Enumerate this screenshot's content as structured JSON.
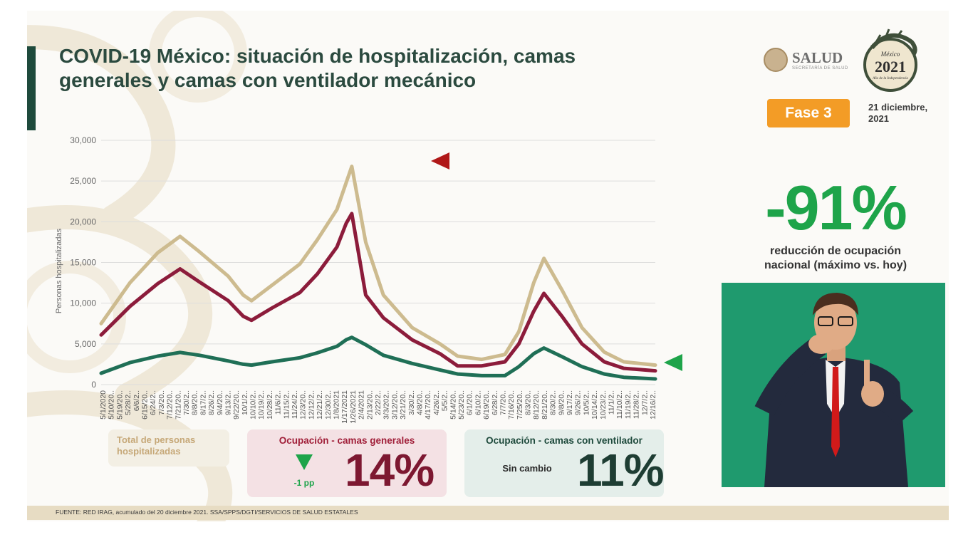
{
  "title": "COVID-19 México: situación de hospitalización, camas generales y camas con ventilador mecánico",
  "logos": {
    "salud": "SALUD",
    "salud_sub": "SECRETARÍA DE SALUD",
    "year_logo_year": "2021",
    "year_logo_top": "México",
    "year_logo_sub": "Año de la Independencia"
  },
  "phase_badge": "Fase 3",
  "date": "21 diciembre, 2021",
  "reduction": {
    "value": "-91%",
    "caption": "reducción de ocupación nacional (máximo vs. hoy)"
  },
  "kpis": {
    "total": {
      "label": "Total de personas hospitalizadas"
    },
    "general": {
      "title": "Ocupación - camas generales",
      "value": "14%",
      "change": "-1 pp"
    },
    "ventilator": {
      "title": "Ocupación - camas con ventilador",
      "value": "11%",
      "change": "Sin cambio"
    }
  },
  "footer": "FUENTE: RED IRAG, acumulado del 20 diciembre 2021.   SSA/SPPS/DGTI/SERVICIOS DE SALUD ESTATALES",
  "colors": {
    "total": "#cdbb8f",
    "general": "#8c1c3b",
    "ventilator": "#1f6f56",
    "badge": "#f39c26",
    "accent_green": "#1ea44a",
    "marker_red": "#b01818"
  },
  "chart_data": {
    "type": "line",
    "ylabel": "Personas hospitalizadas",
    "xlabel": "",
    "ylim": [
      0,
      30000
    ],
    "yticks": [
      "0",
      "5,000",
      "10,000",
      "15,000",
      "20,000",
      "25,000",
      "30,000"
    ],
    "grid": true,
    "x_tick_labels": [
      "5/1/2020",
      "5/10/20..",
      "5/19/20..",
      "5/28/2..",
      "6/6/2..",
      "6/15/20..",
      "6/24/2..",
      "7/3/20..",
      "7/12/20..",
      "7/21/20..",
      "7/30/2..",
      "8/8/20..",
      "8/17/2..",
      "8/26/2..",
      "9/4/20..",
      "9/13/2..",
      "9/22/20..",
      "10/1/2..",
      "10/10/2..",
      "10/19/2..",
      "10/28/2..",
      "11/6/2..",
      "11/15/2..",
      "11/24/2..",
      "12/3/20..",
      "12/12/2..",
      "12/21/2..",
      "12/30/2..",
      "1/8/2021",
      "1/17/2021",
      "1/26/2021",
      "2/4/2021",
      "2/13/20..",
      "2/22/2..",
      "3/3/202..",
      "3/12/20..",
      "3/21/20..",
      "3/30/2..",
      "4/8/20..",
      "4/17/20..",
      "4/26/2..",
      "5/5/2..",
      "5/14/20..",
      "5/23/20..",
      "6/1/20..",
      "6/10/2..",
      "6/19/20..",
      "6/28/2..",
      "7/7/20..",
      "7/16/20..",
      "7/25/20..",
      "8/3/20..",
      "8/12/20..",
      "8/21/20..",
      "8/30/2..",
      "9/8/20..",
      "9/17/2..",
      "9/26/2..",
      "10/5/2..",
      "10/14/2..",
      "10/23/2..",
      "11/1/2..",
      "11/10/2..",
      "11/19/2..",
      "11/28/2..",
      "12/7/2..",
      "12/16/2.."
    ],
    "x": [
      "2020-05-01",
      "2020-06-01",
      "2020-07-01",
      "2020-07-25",
      "2020-08-15",
      "2020-09-15",
      "2020-10-01",
      "2020-10-10",
      "2020-11-01",
      "2020-12-01",
      "2020-12-20",
      "2021-01-10",
      "2021-01-20",
      "2021-01-26",
      "2021-02-10",
      "2021-03-01",
      "2021-04-01",
      "2021-05-01",
      "2021-05-20",
      "2021-06-15",
      "2021-07-10",
      "2021-07-25",
      "2021-08-10",
      "2021-08-21",
      "2021-09-10",
      "2021-10-01",
      "2021-10-25",
      "2021-11-15",
      "2021-12-19"
    ],
    "series": [
      {
        "name": "Total de personas hospitalizadas",
        "values": [
          7500,
          12500,
          16200,
          18200,
          16300,
          13300,
          11000,
          10300,
          12200,
          14800,
          17800,
          21500,
          24800,
          26800,
          17500,
          11000,
          7000,
          5000,
          3500,
          3100,
          3700,
          6500,
          12500,
          15500,
          11500,
          7000,
          4000,
          2800,
          2400
        ]
      },
      {
        "name": "Ocupación - camas generales",
        "values": [
          6100,
          9600,
          12400,
          14200,
          12600,
          10300,
          8400,
          7900,
          9400,
          11300,
          13600,
          16900,
          19800,
          21000,
          11000,
          8200,
          5500,
          3800,
          2300,
          2300,
          2800,
          5000,
          9000,
          11200,
          8300,
          5000,
          2800,
          2000,
          1700
        ]
      },
      {
        "name": "Ocupación - camas con ventilador",
        "values": [
          1400,
          2700,
          3500,
          3950,
          3600,
          2900,
          2500,
          2400,
          2800,
          3300,
          3900,
          4700,
          5500,
          5800,
          4900,
          3600,
          2600,
          1800,
          1300,
          1100,
          1100,
          2200,
          3800,
          4500,
          3400,
          2200,
          1300,
          900,
          700
        ]
      }
    ],
    "markers": [
      {
        "series": "Ocupación - camas generales",
        "color": "#b01818"
      },
      {
        "series": "Ocupación - camas con ventilador",
        "color": "#1ea44a"
      }
    ]
  }
}
